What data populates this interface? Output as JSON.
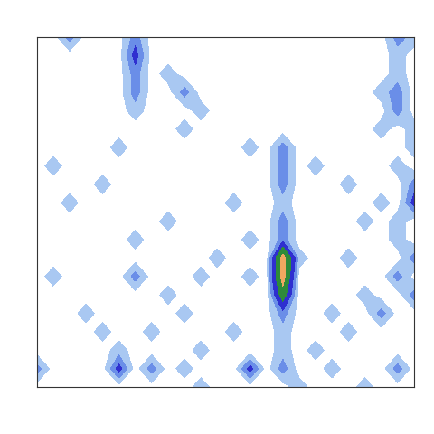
{
  "chart_data": {
    "type": "contour",
    "cells": [
      [
        0,
        0,
        2,
        0,
        0,
        0,
        2,
        0,
        0,
        0,
        0,
        0,
        0,
        0,
        0,
        0,
        0,
        0,
        0,
        0,
        0,
        0,
        2,
        1
      ],
      [
        0,
        0,
        0,
        0,
        0,
        0,
        3,
        0,
        0,
        0,
        0,
        0,
        0,
        0,
        0,
        0,
        0,
        0,
        0,
        0,
        0,
        0,
        1,
        0
      ],
      [
        0,
        0,
        0,
        0,
        0,
        0,
        2,
        0,
        1,
        0,
        0,
        0,
        0,
        0,
        0,
        0,
        0,
        0,
        0,
        0,
        0,
        0,
        1,
        0
      ],
      [
        0,
        0,
        0,
        0,
        0,
        0,
        2,
        0,
        0,
        2,
        0,
        0,
        0,
        0,
        0,
        0,
        0,
        0,
        0,
        0,
        0,
        1,
        2,
        0
      ],
      [
        0,
        0,
        0,
        0,
        0,
        0,
        1,
        0,
        0,
        0,
        1,
        0,
        0,
        0,
        0,
        0,
        0,
        0,
        0,
        0,
        0,
        0,
        2,
        0
      ],
      [
        0,
        0,
        0,
        0,
        0,
        0,
        0,
        0,
        0,
        1,
        0,
        0,
        0,
        0,
        0,
        0,
        0,
        0,
        0,
        0,
        0,
        1,
        0,
        1
      ],
      [
        0,
        0,
        0,
        0,
        0,
        1,
        0,
        0,
        0,
        0,
        0,
        0,
        0,
        1,
        0,
        2,
        0,
        0,
        0,
        0,
        0,
        0,
        0,
        1
      ],
      [
        0,
        1,
        0,
        0,
        0,
        0,
        0,
        0,
        0,
        0,
        0,
        0,
        0,
        0,
        0,
        2,
        0,
        1,
        0,
        0,
        0,
        0,
        1,
        0
      ],
      [
        0,
        0,
        0,
        0,
        1,
        0,
        0,
        0,
        0,
        0,
        0,
        0,
        0,
        0,
        0,
        2,
        0,
        0,
        0,
        1,
        0,
        0,
        0,
        2
      ],
      [
        0,
        0,
        1,
        0,
        0,
        0,
        0,
        0,
        0,
        0,
        0,
        0,
        1,
        0,
        0,
        1,
        0,
        0,
        0,
        0,
        0,
        1,
        0,
        3
      ],
      [
        0,
        0,
        0,
        0,
        0,
        0,
        0,
        0,
        1,
        0,
        0,
        0,
        0,
        0,
        0,
        2,
        0,
        0,
        0,
        0,
        1,
        0,
        1,
        0
      ],
      [
        0,
        0,
        0,
        0,
        0,
        0,
        1,
        0,
        0,
        0,
        0,
        0,
        0,
        1,
        0,
        2,
        0,
        0,
        0,
        0,
        0,
        0,
        1,
        0
      ],
      [
        0,
        0,
        0,
        0,
        0,
        0,
        0,
        0,
        0,
        0,
        0,
        1,
        0,
        0,
        0,
        7,
        1,
        0,
        0,
        1,
        0,
        0,
        0,
        2
      ],
      [
        0,
        1,
        0,
        0,
        0,
        0,
        2,
        0,
        0,
        0,
        1,
        0,
        0,
        1,
        0,
        7,
        0,
        0,
        0,
        0,
        0,
        0,
        2,
        0
      ],
      [
        0,
        0,
        0,
        0,
        0,
        0,
        0,
        0,
        1,
        0,
        0,
        0,
        0,
        0,
        0,
        5,
        0,
        0,
        0,
        0,
        1,
        0,
        0,
        2
      ],
      [
        0,
        0,
        0,
        1,
        0,
        0,
        0,
        0,
        0,
        1,
        0,
        0,
        0,
        0,
        0,
        2,
        0,
        0,
        1,
        0,
        0,
        2,
        0,
        0
      ],
      [
        0,
        0,
        0,
        0,
        1,
        0,
        0,
        1,
        0,
        0,
        0,
        0,
        1,
        0,
        0,
        1,
        0,
        0,
        0,
        1,
        0,
        0,
        0,
        0
      ],
      [
        0,
        0,
        0,
        0,
        0,
        1,
        0,
        0,
        0,
        0,
        1,
        0,
        0,
        0,
        0,
        1,
        0,
        1,
        0,
        0,
        0,
        0,
        0,
        0
      ],
      [
        2,
        0,
        0,
        0,
        0,
        3,
        0,
        2,
        0,
        1,
        0,
        0,
        0,
        3,
        0,
        2,
        0,
        0,
        1,
        0,
        0,
        0,
        2,
        0
      ],
      [
        0,
        0,
        0,
        0,
        0,
        0,
        0,
        0,
        0,
        0,
        1,
        0,
        0,
        0,
        0,
        0,
        1,
        0,
        0,
        0,
        1,
        0,
        0,
        0
      ]
    ],
    "levels": [
      0.5,
      1.5,
      2.5,
      4,
      6,
      8
    ],
    "colors": [
      "#a9c8f2",
      "#6a8ee8",
      "#2f2fd0",
      "#2e8b3a",
      "#f0a860"
    ],
    "xlim": [
      0,
      23
    ],
    "ylim": [
      19,
      0
    ],
    "tick_labels": false
  }
}
